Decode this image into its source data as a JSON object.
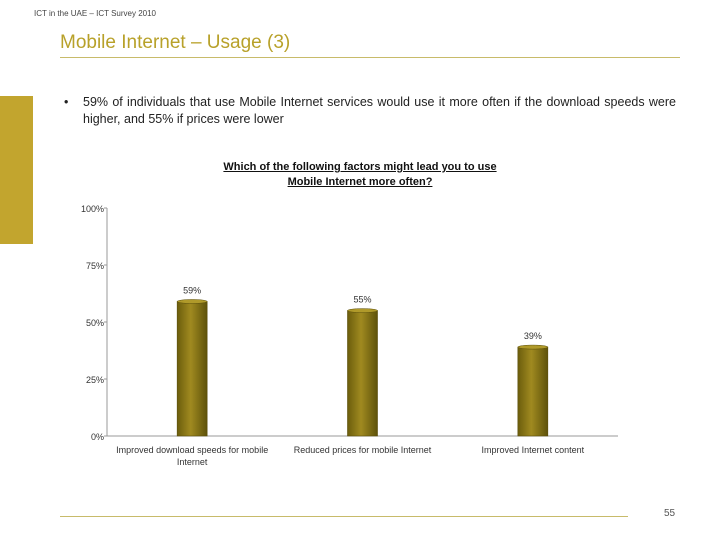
{
  "header": {
    "survey_label": "ICT in the UAE – ICT Survey 2010"
  },
  "slide": {
    "title": "Mobile Internet – Usage (3)",
    "bullet_marker": "•",
    "bullet": "59% of individuals that use Mobile Internet services would use it more often if the download speeds were higher, and 55% if prices were lower",
    "page_number": "55"
  },
  "colors": {
    "accent": "#b8a12a",
    "bar": "#8f7d14",
    "bar_highlight": "#b09a2a",
    "bar_shadow": "#5a4e0a"
  },
  "chart_data": {
    "type": "bar",
    "title_lines": [
      "Which of the following factors might lead you to use",
      "Mobile Internet more often?"
    ],
    "categories": [
      [
        "Improved download speeds for mobile",
        "Internet"
      ],
      [
        "Reduced prices for mobile Internet"
      ],
      [
        "Improved Internet content"
      ]
    ],
    "values": [
      59,
      55,
      39
    ],
    "value_labels": [
      "59%",
      "55%",
      "39%"
    ],
    "ylim": [
      0,
      100
    ],
    "yticks": [
      0,
      25,
      50,
      75,
      100
    ],
    "ytick_labels": [
      "0%",
      "25%",
      "50%",
      "75%",
      "100%"
    ],
    "grid": false,
    "legend": "none"
  }
}
